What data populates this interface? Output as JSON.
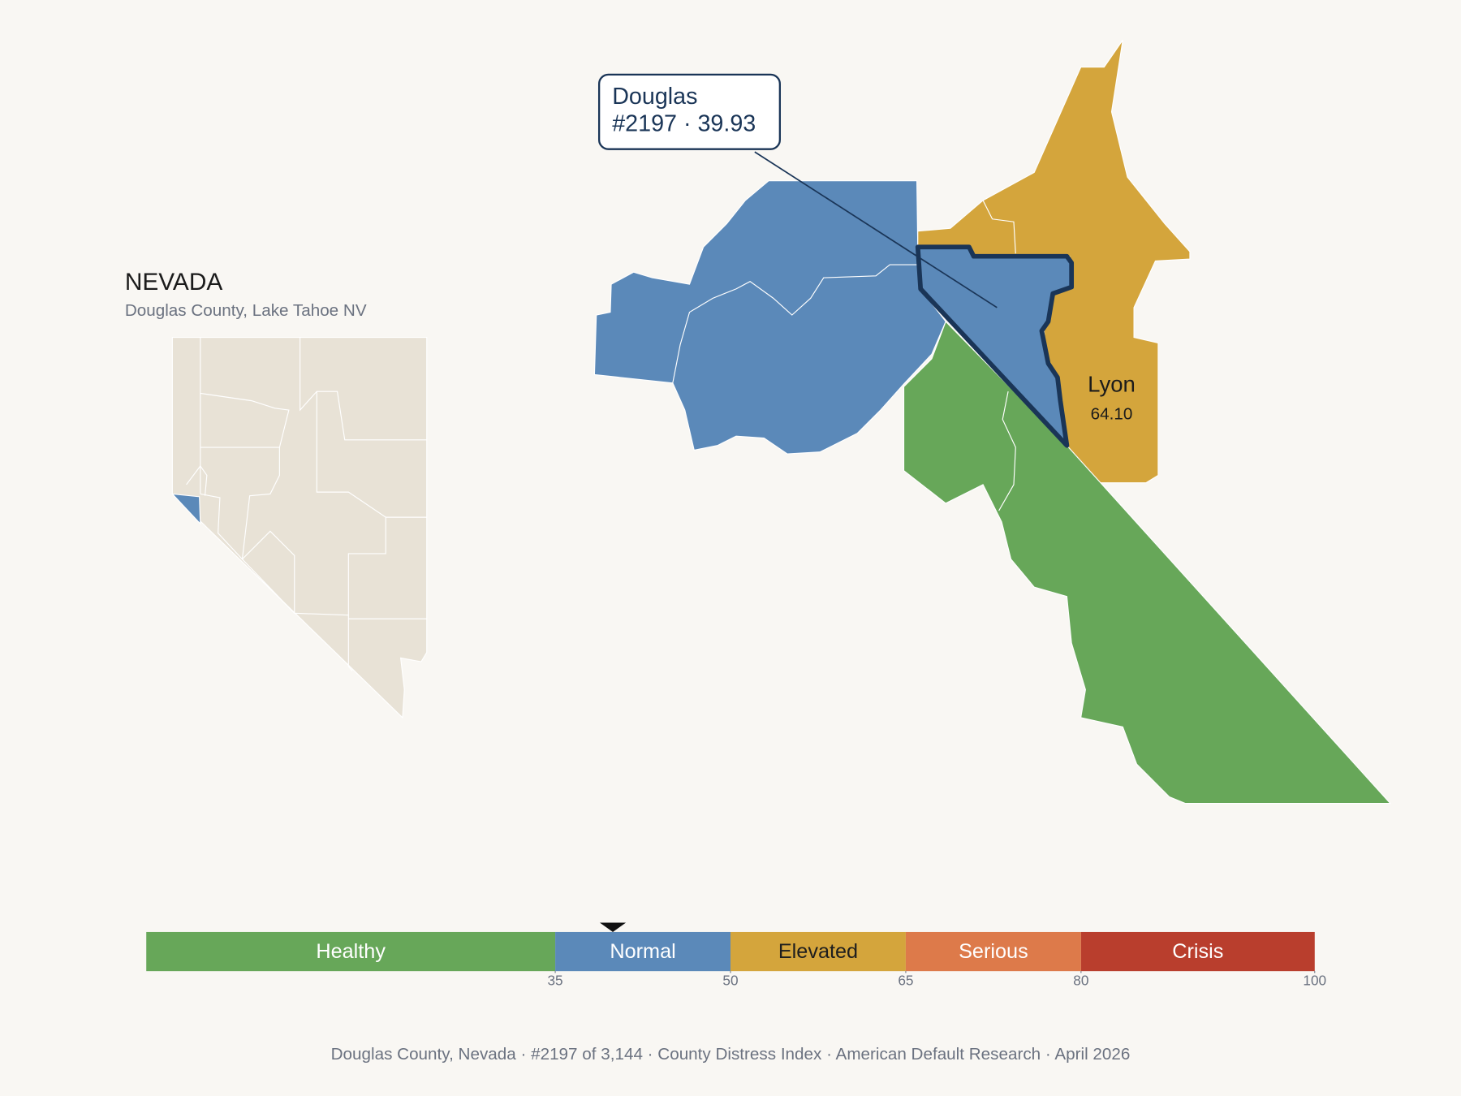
{
  "inset": {
    "title": "NEVADA",
    "subtitle": "Douglas County, Lake Tahoe NV"
  },
  "callout": {
    "lines": [
      "Douglas",
      "#2197 · 39.93"
    ]
  },
  "neighbor": {
    "name": "Lyon",
    "value": "64.10"
  },
  "scale": {
    "range": [
      0,
      100
    ],
    "ticks": [
      35,
      50,
      65,
      80,
      100
    ],
    "marker": 39.93,
    "bands": [
      {
        "label": "Healthy",
        "color": "#67a759",
        "text_color": "#ffffff"
      },
      {
        "label": "Normal",
        "color": "#5b89b9",
        "text_color": "#ffffff"
      },
      {
        "label": "Elevated",
        "color": "#d4a53c",
        "text_color": "#1e1e1e"
      },
      {
        "label": "Serious",
        "color": "#dd7a4a",
        "text_color": "#ffffff"
      },
      {
        "label": "Crisis",
        "color": "#b93e2d",
        "text_color": "#ffffff"
      }
    ]
  },
  "footer": "Douglas County, Nevada  ·  #2197 of 3,144  ·  County Distress Index  ·  American Default Research  ·  April 2026"
}
